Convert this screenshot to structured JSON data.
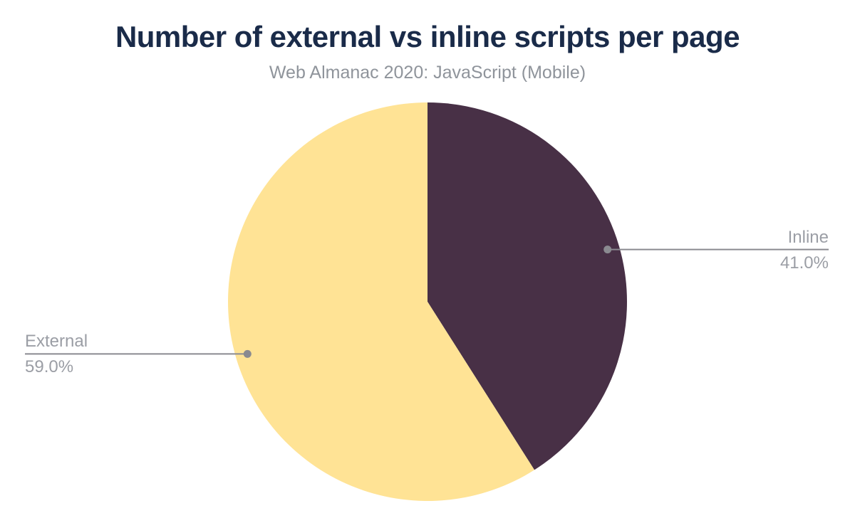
{
  "chart_data": {
    "type": "pie",
    "title": "Number of external vs inline scripts per page",
    "subtitle": "Web Almanac 2020: JavaScript (Mobile)",
    "unit": "percent",
    "start_angle_deg": 0,
    "direction": "clockwise",
    "legend_position": "callouts",
    "slices": [
      {
        "label": "Inline",
        "value": 41.0,
        "pct_label": "41.0%",
        "color": "#483046",
        "callout_side": "right"
      },
      {
        "label": "External",
        "value": 59.0,
        "pct_label": "59.0%",
        "color": "#ffe395",
        "callout_side": "left"
      }
    ]
  },
  "style": {
    "background_color": "#ffffff",
    "title_color": "#1a2b49",
    "subtitle_color": "#8f949b",
    "label_color": "#9b9ea5",
    "leader_color": "#8a8a90"
  }
}
